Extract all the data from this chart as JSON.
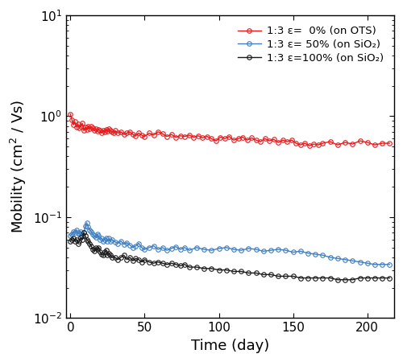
{
  "title": "",
  "xlabel": "Time (day)",
  "ylabel": "Mobility (cm$^2$ / Vs)",
  "xlim": [
    -3,
    218
  ],
  "ylim_log": [
    0.01,
    10
  ],
  "legend_labels": [
    "1:3 ε=  0% (on OTS)",
    "1:3 ε= 50% (on SiO₂)",
    "1:3 ε=100% (on SiO₂)"
  ],
  "colors": [
    "#e8191a",
    "#3f7fbf",
    "#1a1a1a"
  ],
  "red_x": [
    0,
    1,
    2,
    3,
    4,
    5,
    6,
    7,
    8,
    9,
    10,
    11,
    12,
    13,
    14,
    15,
    16,
    17,
    18,
    19,
    20,
    21,
    22,
    23,
    24,
    25,
    26,
    27,
    28,
    29,
    30,
    32,
    34,
    36,
    38,
    40,
    42,
    44,
    46,
    48,
    50,
    53,
    56,
    59,
    62,
    65,
    68,
    71,
    74,
    77,
    80,
    83,
    86,
    89,
    92,
    95,
    98,
    101,
    104,
    107,
    110,
    113,
    116,
    119,
    122,
    125,
    128,
    131,
    134,
    137,
    140,
    143,
    146,
    149,
    152,
    155,
    158,
    161,
    164,
    167,
    170,
    175,
    180,
    185,
    190,
    195,
    200,
    205,
    210,
    215
  ],
  "red_y": [
    1.05,
    0.92,
    0.82,
    0.88,
    0.78,
    0.84,
    0.76,
    0.8,
    0.85,
    0.72,
    0.78,
    0.74,
    0.8,
    0.75,
    0.79,
    0.76,
    0.72,
    0.75,
    0.71,
    0.74,
    0.72,
    0.68,
    0.73,
    0.7,
    0.74,
    0.71,
    0.75,
    0.72,
    0.7,
    0.68,
    0.72,
    0.68,
    0.7,
    0.66,
    0.68,
    0.7,
    0.66,
    0.64,
    0.68,
    0.65,
    0.63,
    0.68,
    0.65,
    0.7,
    0.67,
    0.63,
    0.66,
    0.62,
    0.64,
    0.63,
    0.65,
    0.62,
    0.64,
    0.61,
    0.63,
    0.6,
    0.57,
    0.62,
    0.6,
    0.63,
    0.58,
    0.6,
    0.62,
    0.58,
    0.61,
    0.58,
    0.56,
    0.6,
    0.57,
    0.59,
    0.55,
    0.58,
    0.56,
    0.58,
    0.54,
    0.52,
    0.54,
    0.51,
    0.53,
    0.52,
    0.54,
    0.56,
    0.52,
    0.55,
    0.53,
    0.57,
    0.55,
    0.52,
    0.54,
    0.54
  ],
  "blue_x": [
    0,
    1,
    2,
    3,
    4,
    5,
    6,
    7,
    8,
    9,
    10,
    11,
    12,
    13,
    14,
    15,
    16,
    17,
    18,
    19,
    20,
    21,
    22,
    23,
    24,
    25,
    26,
    27,
    28,
    30,
    32,
    34,
    36,
    38,
    40,
    42,
    44,
    46,
    48,
    50,
    53,
    56,
    59,
    62,
    65,
    68,
    71,
    74,
    77,
    80,
    85,
    90,
    95,
    100,
    105,
    110,
    115,
    120,
    125,
    130,
    135,
    140,
    145,
    150,
    155,
    160,
    165,
    170,
    175,
    180,
    185,
    190,
    195,
    200,
    205,
    210,
    215
  ],
  "blue_y": [
    0.065,
    0.068,
    0.072,
    0.07,
    0.075,
    0.07,
    0.068,
    0.072,
    0.065,
    0.07,
    0.082,
    0.088,
    0.08,
    0.075,
    0.072,
    0.068,
    0.065,
    0.063,
    0.068,
    0.065,
    0.06,
    0.062,
    0.058,
    0.06,
    0.062,
    0.058,
    0.062,
    0.058,
    0.06,
    0.057,
    0.055,
    0.058,
    0.054,
    0.056,
    0.053,
    0.05,
    0.052,
    0.055,
    0.05,
    0.048,
    0.05,
    0.052,
    0.048,
    0.05,
    0.047,
    0.049,
    0.051,
    0.048,
    0.05,
    0.047,
    0.05,
    0.048,
    0.047,
    0.049,
    0.05,
    0.048,
    0.047,
    0.049,
    0.048,
    0.046,
    0.047,
    0.048,
    0.047,
    0.045,
    0.046,
    0.044,
    0.043,
    0.042,
    0.04,
    0.039,
    0.038,
    0.037,
    0.036,
    0.035,
    0.034,
    0.034,
    0.034
  ],
  "black_x": [
    0,
    1,
    2,
    3,
    4,
    5,
    6,
    7,
    8,
    9,
    10,
    11,
    12,
    13,
    14,
    15,
    16,
    17,
    18,
    19,
    20,
    21,
    22,
    23,
    24,
    25,
    26,
    27,
    28,
    30,
    32,
    34,
    36,
    38,
    40,
    42,
    44,
    46,
    48,
    50,
    53,
    56,
    59,
    62,
    65,
    68,
    71,
    74,
    77,
    80,
    85,
    90,
    95,
    100,
    105,
    110,
    115,
    120,
    125,
    130,
    135,
    140,
    145,
    150,
    155,
    160,
    165,
    170,
    175,
    180,
    185,
    190,
    195,
    200,
    205,
    210,
    215
  ],
  "black_y": [
    0.058,
    0.06,
    0.062,
    0.058,
    0.06,
    0.055,
    0.058,
    0.063,
    0.06,
    0.07,
    0.065,
    0.06,
    0.058,
    0.055,
    0.052,
    0.048,
    0.046,
    0.05,
    0.048,
    0.05,
    0.045,
    0.043,
    0.042,
    0.045,
    0.047,
    0.042,
    0.044,
    0.042,
    0.04,
    0.04,
    0.038,
    0.04,
    0.042,
    0.038,
    0.04,
    0.037,
    0.039,
    0.038,
    0.036,
    0.038,
    0.036,
    0.035,
    0.036,
    0.035,
    0.034,
    0.035,
    0.034,
    0.033,
    0.034,
    0.032,
    0.032,
    0.031,
    0.031,
    0.03,
    0.03,
    0.029,
    0.029,
    0.028,
    0.028,
    0.027,
    0.027,
    0.026,
    0.026,
    0.026,
    0.025,
    0.025,
    0.025,
    0.025,
    0.025,
    0.024,
    0.024,
    0.024,
    0.025,
    0.025,
    0.025,
    0.025,
    0.025
  ]
}
